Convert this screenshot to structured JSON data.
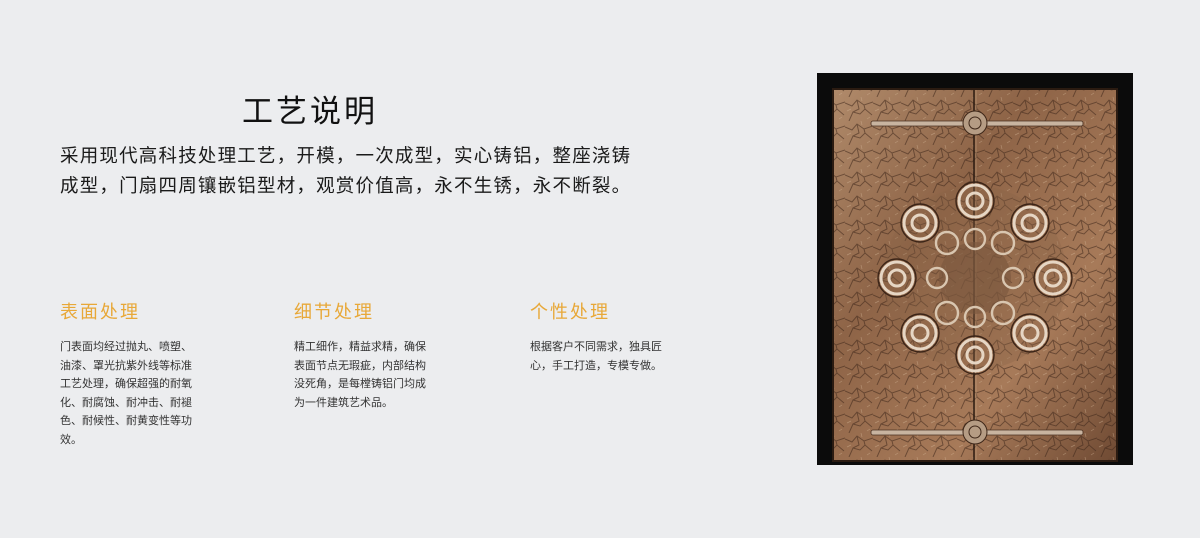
{
  "heading": "工艺说明",
  "intro": {
    "line1": "采用现代高科技处理工艺，开模，一次成型，实心铸铝，整座浇铸",
    "line2": "成型，门扇四周镶嵌铝型材，观赏价值高，永不生锈，永不断裂。"
  },
  "features": [
    {
      "title": "表面处理",
      "lines": [
        "门表面均经过抛丸、喷塑、",
        "油漆、罩光抗紫外线等标准",
        "工艺处理，确保超强的耐氧",
        "化、耐腐蚀、耐冲击、耐褪",
        "色、耐候性、耐黄变性等功",
        "效。"
      ]
    },
    {
      "title": "细节处理",
      "lines": [
        "精工细作，精益求精，确保",
        "表面节点无瑕疵，内部结构",
        "没死角，是每樘铸铝门均成",
        "为一件建筑艺术品。"
      ]
    },
    {
      "title": "个性处理",
      "lines": [
        "根据客户不同需求，独具匠",
        "心，手工打造，专模专做。"
      ]
    }
  ],
  "colors": {
    "accent": "#e8a838",
    "background": "#ecedef",
    "text": "#1a1a1a",
    "door_bronze": "#9a6e4c"
  }
}
